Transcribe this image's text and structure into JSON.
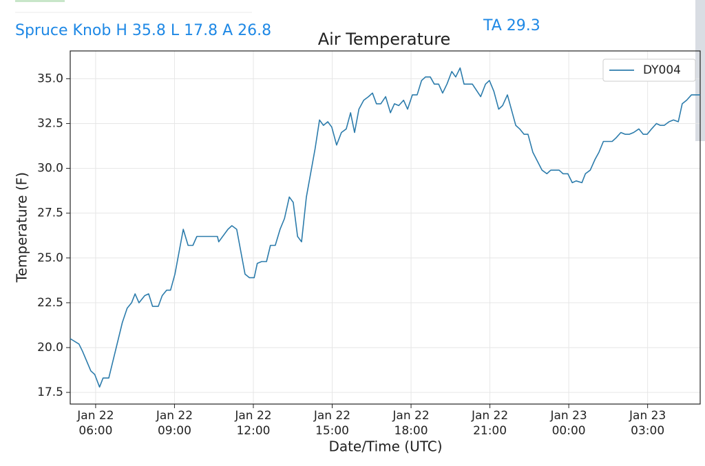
{
  "header": {
    "summary": "Spruce Knob H 35.8 L 17.8 A 26.8",
    "ta": "TA 29.3"
  },
  "chart_data": {
    "type": "line",
    "title": "Air Temperature",
    "x_label": "Date/Time (UTC)",
    "y_label": "Temperature (F)",
    "x": [
      "Jan 22 05:02",
      "Jan 22 05:22",
      "Jan 22 05:30",
      "Jan 22 05:49",
      "Jan 22 05:58",
      "Jan 22 06:09",
      "Jan 22 06:17",
      "Jan 22 06:30",
      "Jan 22 06:41",
      "Jan 22 07:01",
      "Jan 22 07:12",
      "Jan 22 07:22",
      "Jan 22 07:30",
      "Jan 22 07:39",
      "Jan 22 07:52",
      "Jan 22 08:01",
      "Jan 22 08:10",
      "Jan 22 08:23",
      "Jan 22 08:32",
      "Jan 22 08:42",
      "Jan 22 08:51",
      "Jan 22 09:01",
      "Jan 22 09:20",
      "Jan 22 09:31",
      "Jan 22 09:42",
      "Jan 22 09:51",
      "Jan 22 10:13",
      "Jan 22 10:38",
      "Jan 22 10:41",
      "Jan 22 11:02",
      "Jan 22 11:11",
      "Jan 22 11:22",
      "Jan 22 11:41",
      "Jan 22 11:51",
      "Jan 22 12:02",
      "Jan 22 12:09",
      "Jan 22 12:19",
      "Jan 22 12:30",
      "Jan 22 12:39",
      "Jan 22 12:50",
      "Jan 22 13:01",
      "Jan 22 13:11",
      "Jan 22 13:22",
      "Jan 22 13:31",
      "Jan 22 13:41",
      "Jan 22 13:50",
      "Jan 22 14:01",
      "Jan 22 14:21",
      "Jan 22 14:31",
      "Jan 22 14:40",
      "Jan 22 14:50",
      "Jan 22 14:59",
      "Jan 22 15:10",
      "Jan 22 15:21",
      "Jan 22 15:32",
      "Jan 22 15:42",
      "Jan 22 15:51",
      "Jan 22 16:01",
      "Jan 22 16:12",
      "Jan 22 16:23",
      "Jan 22 16:32",
      "Jan 22 16:41",
      "Jan 22 16:51",
      "Jan 22 17:02",
      "Jan 22 17:13",
      "Jan 22 17:22",
      "Jan 22 17:32",
      "Jan 22 17:43",
      "Jan 22 17:52",
      "Jan 22 18:03",
      "Jan 22 18:14",
      "Jan 22 18:24",
      "Jan 22 18:33",
      "Jan 22 18:44",
      "Jan 22 18:53",
      "Jan 22 19:03",
      "Jan 22 19:12",
      "Jan 22 19:22",
      "Jan 22 19:33",
      "Jan 22 19:42",
      "Jan 22 19:52",
      "Jan 22 20:01",
      "Jan 22 20:20",
      "Jan 22 20:39",
      "Jan 22 20:50",
      "Jan 22 20:59",
      "Jan 22 21:09",
      "Jan 22 21:20",
      "Jan 22 21:29",
      "Jan 22 21:40",
      "Jan 22 21:59",
      "Jan 22 22:08",
      "Jan 22 22:18",
      "Jan 22 22:27",
      "Jan 22 22:38",
      "Jan 22 22:59",
      "Jan 22 23:10",
      "Jan 22 23:19",
      "Jan 22 23:38",
      "Jan 22 23:47",
      "Jan 22 23:58",
      "Jan 23 00:08",
      "Jan 23 00:17",
      "Jan 23 00:30",
      "Jan 23 00:38",
      "Jan 23 00:49",
      "Jan 23 01:00",
      "Jan 23 01:09",
      "Jan 23 01:19",
      "Jan 23 01:39",
      "Jan 23 01:48",
      "Jan 23 01:59",
      "Jan 23 02:09",
      "Jan 23 02:18",
      "Jan 23 02:28",
      "Jan 23 02:40",
      "Jan 23 02:50",
      "Jan 23 02:59",
      "Jan 23 03:09",
      "Jan 23 03:20",
      "Jan 23 03:29",
      "Jan 23 03:38",
      "Jan 23 03:49",
      "Jan 23 03:59",
      "Jan 23 04:10",
      "Jan 23 04:19",
      "Jan 23 04:29",
      "Jan 23 04:40",
      "Jan 23 05:00"
    ],
    "series": [
      {
        "name": "DY004",
        "color": "#2b7bab",
        "values": [
          20.5,
          20.2,
          19.8,
          18.7,
          18.5,
          17.8,
          18.3,
          18.3,
          19.4,
          21.4,
          22.2,
          22.5,
          23.0,
          22.5,
          22.9,
          23.0,
          22.3,
          22.3,
          22.9,
          23.2,
          23.2,
          24.1,
          26.6,
          25.7,
          25.7,
          26.2,
          26.2,
          26.2,
          25.9,
          26.6,
          26.8,
          26.6,
          24.1,
          23.9,
          23.9,
          24.7,
          24.8,
          24.8,
          25.7,
          25.7,
          26.6,
          27.2,
          28.4,
          28.1,
          26.2,
          25.9,
          28.4,
          31.1,
          32.7,
          32.4,
          32.6,
          32.3,
          31.3,
          32.0,
          32.2,
          33.1,
          32.0,
          33.3,
          33.8,
          34.0,
          34.2,
          33.6,
          33.6,
          34.0,
          33.1,
          33.6,
          33.5,
          33.8,
          33.3,
          34.1,
          34.1,
          34.9,
          35.1,
          35.1,
          34.7,
          34.7,
          34.2,
          34.7,
          35.4,
          35.1,
          35.6,
          34.7,
          34.7,
          34.0,
          34.7,
          34.9,
          34.3,
          33.3,
          33.5,
          34.1,
          32.4,
          32.2,
          31.9,
          31.9,
          30.9,
          29.9,
          29.7,
          29.9,
          29.9,
          29.7,
          29.7,
          29.2,
          29.3,
          29.2,
          29.7,
          29.9,
          30.5,
          30.9,
          31.5,
          31.5,
          31.7,
          32.0,
          31.9,
          31.9,
          32.0,
          32.2,
          31.9,
          31.9,
          32.2,
          32.5,
          32.4,
          32.4,
          32.6,
          32.7,
          32.6,
          33.6,
          33.8,
          34.1,
          34.1
        ]
      }
    ],
    "xlim": [
      "Jan 22 05:02",
      "Jan 23 05:00"
    ],
    "xticks": [
      "Jan 22 06:00",
      "Jan 22 09:00",
      "Jan 22 12:00",
      "Jan 22 15:00",
      "Jan 22 18:00",
      "Jan 22 21:00",
      "Jan 23 00:00",
      "Jan 23 03:00"
    ],
    "ylim": [
      16.85,
      36.55
    ],
    "yticks": [
      {
        "value": 17.5,
        "label": "17.5"
      },
      {
        "value": 20,
        "label": "20.0"
      },
      {
        "value": 22.5,
        "label": "22.5"
      },
      {
        "value": 25,
        "label": "25.0"
      },
      {
        "value": 27.5,
        "label": "27.5"
      },
      {
        "value": 30,
        "label": "30.0"
      },
      {
        "value": 32.5,
        "label": "32.5"
      },
      {
        "value": 35,
        "label": "35.0"
      }
    ],
    "grid": true,
    "legend": "upper right"
  }
}
